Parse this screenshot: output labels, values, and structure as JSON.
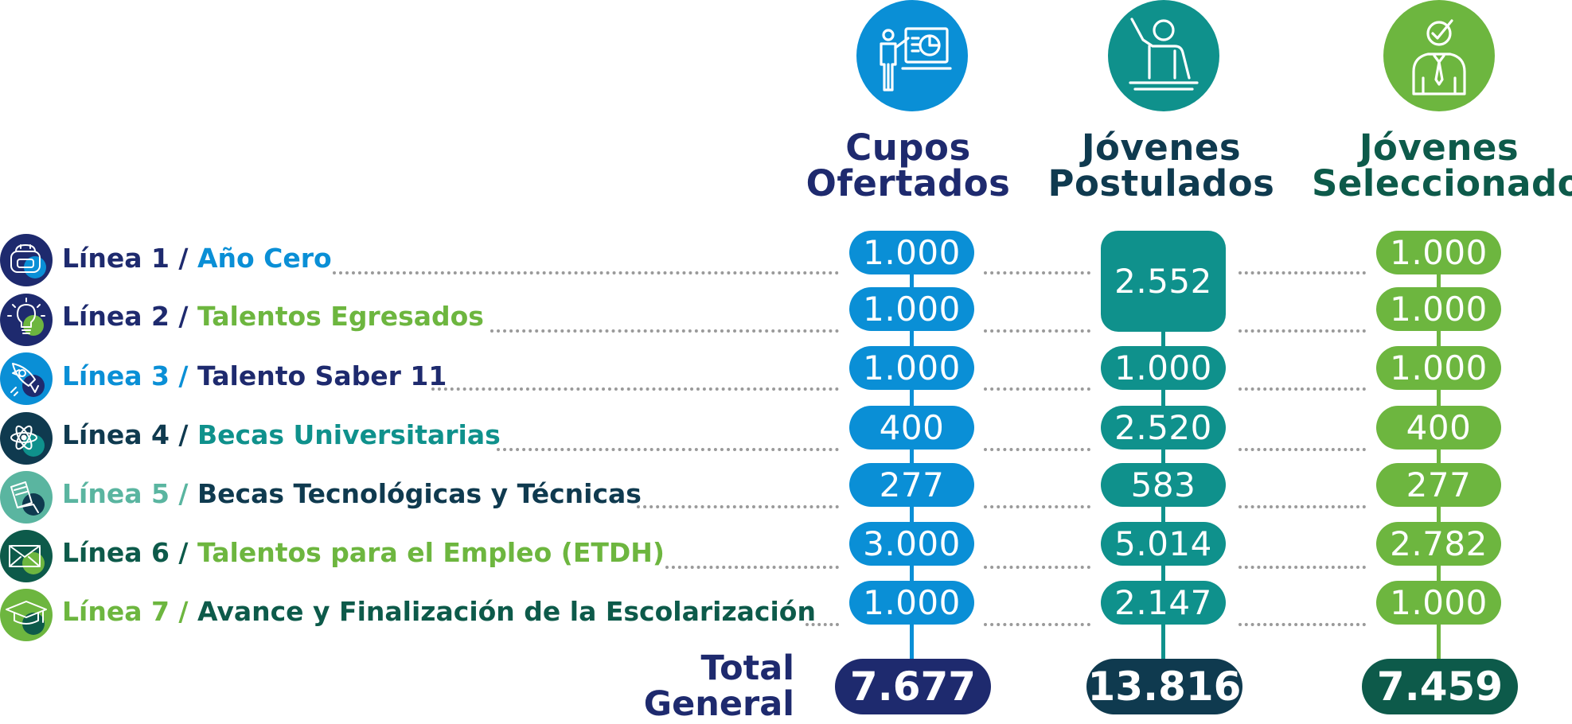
{
  "colors": {
    "navy": "#1e2a6e",
    "blue": "#0a8fd6",
    "teal": "#0f918c",
    "green": "#6db63f",
    "dark_teal": "#0f3a4f",
    "dark_green": "#0d5a4a",
    "mint": "#5ab5a0"
  },
  "columns": [
    {
      "icon": "presenter-chart-icon",
      "title_line1": "Cupos",
      "title_line2": "Ofertados",
      "values": [
        "1.000",
        "1.000",
        "1.000",
        "400",
        "277",
        "3.000",
        "1.000"
      ],
      "total": "7.677"
    },
    {
      "icon": "raised-hand-person-icon",
      "title_line1": "Jóvenes",
      "title_line2": "Postulados",
      "merged_value": "2.552",
      "values": [
        "1.000",
        "2.520",
        "583",
        "5.014",
        "2.147"
      ],
      "total": "13.816"
    },
    {
      "icon": "selected-person-check-icon",
      "title_line1": "Jóvenes",
      "title_line2": "Seleccionados",
      "values": [
        "1.000",
        "1.000",
        "1.000",
        "400",
        "277",
        "2.782",
        "1.000"
      ],
      "total": "7.459"
    }
  ],
  "rows": [
    {
      "prefix": "Línea 1 /",
      "name": "Año Cero",
      "icon": "backpack-icon"
    },
    {
      "prefix": "Línea 2 /",
      "name": "Talentos Egresados",
      "icon": "lightbulb-icon"
    },
    {
      "prefix": "Línea 3 /",
      "name": "Talento Saber 11",
      "icon": "rocket-icon"
    },
    {
      "prefix": "Línea 4 /",
      "name": "Becas Universitarias",
      "icon": "atom-icon"
    },
    {
      "prefix": "Línea 5 /",
      "name": "Becas Tecnológicas y Técnicas",
      "icon": "books-icon"
    },
    {
      "prefix": "Línea 6 /",
      "name": "Talentos para el Empleo (ETDH)",
      "icon": "envelope-icon"
    },
    {
      "prefix": "Línea 7 /",
      "name": "Avance y Finalización de la Escolarización",
      "icon": "graduation-cap-icon"
    }
  ],
  "total_label_line1": "Total",
  "total_label_line2": "General"
}
